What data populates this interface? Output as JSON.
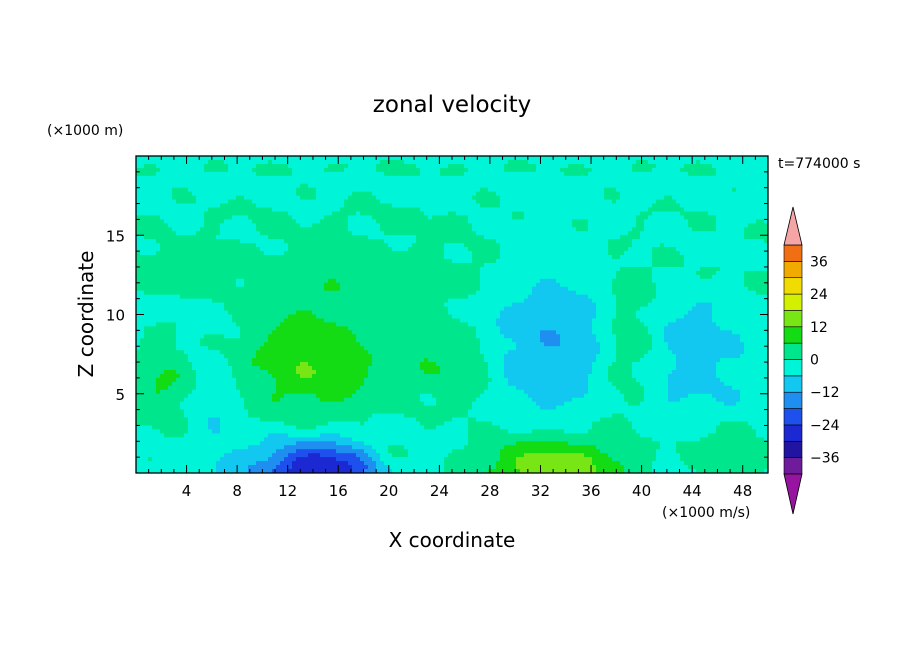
{
  "chart_data": {
    "type": "heatmap",
    "title": "zonal velocity",
    "xlabel": "X coordinate",
    "ylabel": "Z coordinate",
    "x_unit": "(×1000 m/s)",
    "y_unit": "(×1000 m)",
    "time_label": "t=774000 s",
    "xlim": [
      0,
      50
    ],
    "ylim": [
      0,
      20
    ],
    "x_ticks": [
      4,
      8,
      12,
      16,
      20,
      24,
      28,
      32,
      36,
      40,
      44,
      48
    ],
    "y_ticks": [
      5,
      10,
      15
    ],
    "colorbar": {
      "range": [
        -42,
        42
      ],
      "ticks": [
        36,
        24,
        12,
        0,
        -12,
        -24,
        -36
      ],
      "levels": [
        -42,
        -36,
        -30,
        -24,
        -18,
        -12,
        -6,
        0,
        6,
        12,
        18,
        24,
        30,
        36,
        42
      ],
      "colors": [
        "#6e1c9c",
        "#2014a0",
        "#1c28d2",
        "#1e50ee",
        "#1e8ef0",
        "#12c8f0",
        "#00f5d8",
        "#00e68c",
        "#14dc14",
        "#78e614",
        "#d2f000",
        "#f0dc00",
        "#f0aa00",
        "#f06e14",
        "#f03c28",
        "#f0144b"
      ],
      "under_color": "#9614a0",
      "over_color": "#f5a5a5"
    },
    "field": {
      "base_value": -3,
      "features": [
        {
          "x": 14,
          "z": 7,
          "sx": 4.5,
          "sz": 2.8,
          "amp": 14
        },
        {
          "x": 2,
          "z": 5.5,
          "sx": 2,
          "sz": 2.2,
          "amp": 9
        },
        {
          "x": 23.5,
          "z": 7.5,
          "sx": 1.7,
          "sz": 2.5,
          "amp": 6
        },
        {
          "x": 26.5,
          "z": 6.5,
          "sx": 1.4,
          "sz": 2,
          "amp": 7
        },
        {
          "x": 14.5,
          "z": 0.2,
          "sx": 3.5,
          "sz": 1.3,
          "amp": -28
        },
        {
          "x": 33,
          "z": 0.3,
          "sx": 4.2,
          "sz": 1.6,
          "amp": 20
        },
        {
          "x": 46.5,
          "z": 1.5,
          "sx": 2.5,
          "sz": 1.2,
          "amp": 9
        },
        {
          "x": 20,
          "z": 1,
          "sx": 1.4,
          "sz": 1,
          "amp": 6
        },
        {
          "x": 33,
          "z": 9,
          "sx": 3.5,
          "sz": 4.5,
          "amp": -8
        },
        {
          "x": 44,
          "z": 8,
          "sx": 3,
          "sz": 4,
          "amp": -5
        },
        {
          "x": 6,
          "z": 4.5,
          "sx": 1.5,
          "sz": 3,
          "amp": -4
        },
        {
          "x": 38.5,
          "z": 6,
          "sx": 1.6,
          "sz": 3.5,
          "amp": 5
        },
        {
          "x": 39.5,
          "z": 9,
          "sx": 1.5,
          "sz": 2,
          "amp": 6
        },
        {
          "x": 25,
          "z": 12.5,
          "sx": 30,
          "sz": 1.3,
          "amp": 5
        },
        {
          "x": 25,
          "z": 16,
          "sx": 30,
          "sz": 1.5,
          "amp": 3.5
        },
        {
          "x": 2,
          "z": 13,
          "sx": 2,
          "sz": 0.8,
          "amp": 4
        },
        {
          "x": 25,
          "z": 19.2,
          "sx": 30,
          "sz": 0.4,
          "amp": 3
        }
      ]
    }
  }
}
